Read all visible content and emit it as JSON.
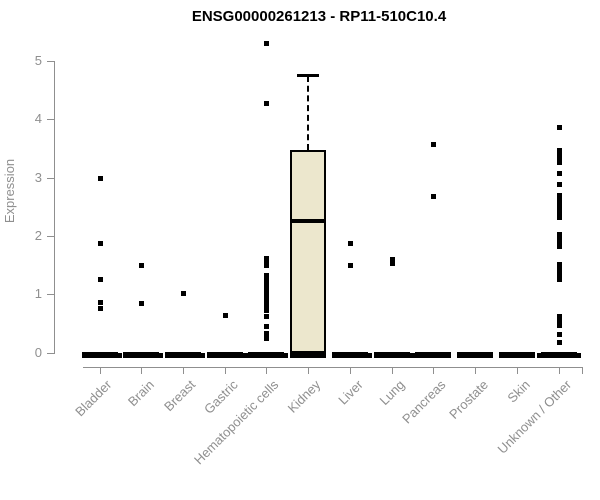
{
  "title": "ENSG00000261213 - RP11-510C10.4",
  "chart_data": {
    "type": "boxplot",
    "title": "ENSG00000261213 - RP11-510C10.4",
    "xlabel": "",
    "ylabel": "Expression",
    "ylim": [
      0,
      5.35
    ],
    "yticks": [
      0,
      1,
      2,
      3,
      4,
      5
    ],
    "grid": false,
    "legend": false,
    "categories": [
      "Bladder",
      "Brain",
      "Breast",
      "Gastric",
      "Hematopoietic cells",
      "Kidney",
      "Liver",
      "Lung",
      "Pancreas",
      "Prostate",
      "Skin",
      "Unknown / Other"
    ],
    "series": [
      {
        "category": "Bladder",
        "median": 0,
        "zero_bar": true,
        "points": [
          2.99,
          1.88,
          1.26,
          0.86,
          0.76
        ],
        "edge_points_at_zero": [
          "right"
        ]
      },
      {
        "category": "Brain",
        "median": 0,
        "zero_bar": true,
        "points": [
          1.5,
          0.85
        ],
        "edge_points_at_zero": [
          "right"
        ]
      },
      {
        "category": "Breast",
        "median": 0,
        "zero_bar": true,
        "points": [
          1.03
        ],
        "edge_points_at_zero": [
          "right"
        ]
      },
      {
        "category": "Gastric",
        "median": 0,
        "zero_bar": true,
        "points": [
          0.65
        ],
        "edge_points_at_zero": [
          "right"
        ]
      },
      {
        "category": "Hematopoietic cells",
        "median": 0,
        "zero_bar": true,
        "points": [
          5.31,
          4.28,
          1.63,
          1.58,
          1.51,
          1.33,
          1.25,
          1.19,
          1.13,
          1.08,
          1.03,
          0.98,
          0.93,
          0.88,
          0.83,
          0.78,
          0.73,
          0.63,
          0.45,
          0.33,
          0.25
        ],
        "edge_points_at_zero": [
          "left",
          "right"
        ]
      },
      {
        "category": "Kidney",
        "zero_bar": true,
        "box": {
          "lower": 0,
          "q1": 0,
          "median": 2.25,
          "q3": 3.47,
          "upper_whisker": 4.74
        },
        "points": [],
        "edge_points_at_zero": []
      },
      {
        "category": "Liver",
        "median": 0,
        "zero_bar": true,
        "points": [
          1.87,
          1.51
        ],
        "edge_points_at_zero": [
          "right"
        ]
      },
      {
        "category": "Lung",
        "median": 0,
        "zero_bar": true,
        "points": [
          1.61,
          1.53
        ],
        "edge_points_at_zero": [
          "right"
        ]
      },
      {
        "category": "Pancreas",
        "median": 0,
        "zero_bar": true,
        "points": [
          3.57,
          2.69
        ],
        "edge_points_at_zero": [
          "left"
        ]
      },
      {
        "category": "Prostate",
        "median": 0,
        "zero_bar": true,
        "points": [],
        "edge_points_at_zero": []
      },
      {
        "category": "Skin",
        "median": 0,
        "zero_bar": true,
        "points": [],
        "edge_points_at_zero": []
      },
      {
        "category": "Unknown / Other",
        "median": 0,
        "zero_bar": true,
        "points": [
          3.86,
          3.47,
          3.4,
          3.33,
          3.27,
          3.08,
          2.89,
          2.7,
          2.62,
          2.53,
          2.46,
          2.38,
          2.33,
          2.04,
          1.97,
          1.9,
          1.83,
          1.52,
          1.45,
          1.38,
          1.3,
          1.26,
          0.63,
          0.56,
          0.47,
          0.32,
          0.18
        ],
        "edge_points_at_zero": [
          "left",
          "right"
        ]
      }
    ],
    "colors": {
      "box_fill": "#ece7cd",
      "box_border": "#000000",
      "point": "#000000",
      "median": "#000000",
      "axis": "#8f8f8f",
      "tick_label": "#8f8f8f",
      "title": "#000000"
    }
  }
}
